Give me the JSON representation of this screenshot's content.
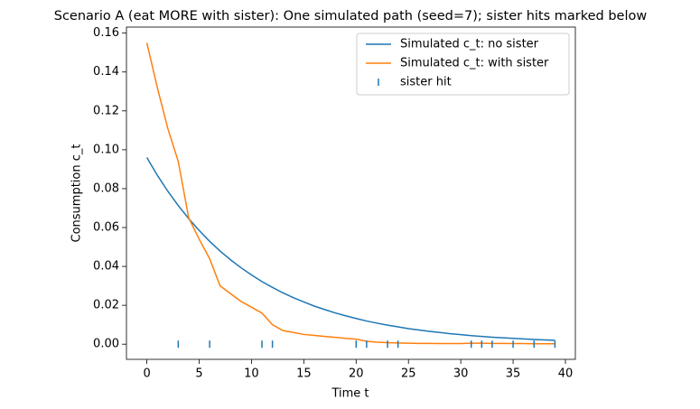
{
  "chart_data": {
    "type": "line",
    "title": "Scenario A (eat MORE with sister): One simulated path (seed=7); sister hits marked below",
    "x_label": "Time t",
    "y_label": "Consumption c_t",
    "x": [
      0,
      1,
      2,
      3,
      4,
      5,
      6,
      7,
      8,
      9,
      10,
      11,
      12,
      13,
      14,
      15,
      16,
      17,
      18,
      19,
      20,
      21,
      22,
      23,
      24,
      25,
      26,
      27,
      28,
      29,
      30,
      31,
      32,
      33,
      34,
      35,
      36,
      37,
      38,
      39
    ],
    "series": [
      {
        "name": "Simulated c_t: no sister",
        "type": "line",
        "color": "#1f77b4",
        "values": [
          0.096,
          0.0869,
          0.0787,
          0.0713,
          0.0646,
          0.0585,
          0.0529,
          0.0479,
          0.0434,
          0.0393,
          0.0356,
          0.0322,
          0.0292,
          0.0264,
          0.0239,
          0.0217,
          0.0196,
          0.0178,
          0.0161,
          0.0146,
          0.0132,
          0.0119,
          0.0108,
          0.0098,
          0.0089,
          0.008,
          0.0073,
          0.0066,
          0.006,
          0.0054,
          0.0049,
          0.0044,
          0.004,
          0.0036,
          0.0033,
          0.003,
          0.0027,
          0.0024,
          0.0022,
          0.002
        ]
      },
      {
        "name": "Simulated c_t: with sister",
        "type": "line",
        "color": "#ff7f0e",
        "values": [
          0.155,
          0.132,
          0.111,
          0.094,
          0.065,
          0.054,
          0.044,
          0.03,
          0.026,
          0.022,
          0.019,
          0.016,
          0.01,
          0.007,
          0.006,
          0.005,
          0.0045,
          0.004,
          0.0035,
          0.003,
          0.0026,
          0.0015,
          0.001,
          0.0008,
          0.0006,
          0.0005,
          0.0004,
          0.0004,
          0.0003,
          0.0003,
          0.0003,
          0.0005,
          0.0005,
          0.0004,
          0.0004,
          0.0003,
          0.0003,
          0.0002,
          0.0002,
          0.0002
        ]
      },
      {
        "name": "sister hit",
        "type": "scatter",
        "color": "#1f77b4",
        "x": [
          3,
          6,
          11,
          12,
          20,
          21,
          23,
          24,
          31,
          32,
          33,
          35,
          37,
          39
        ],
        "values": [
          0,
          0,
          0,
          0,
          0,
          0,
          0,
          0,
          0,
          0,
          0,
          0,
          0,
          0
        ]
      }
    ],
    "xlim": [
      -1.95,
      40.95
    ],
    "xticks": [
      0,
      5,
      10,
      15,
      20,
      25,
      30,
      35,
      40
    ],
    "ylim": [
      -0.0078,
      0.1631
    ],
    "yticks": [
      {
        "value": 0,
        "label": "0.00"
      },
      0.02,
      0.04,
      0.06,
      0.08,
      {
        "value": 0.1,
        "label": "0.10"
      },
      0.12,
      0.14,
      0.16
    ],
    "legend": "upper right",
    "grid": false
  }
}
